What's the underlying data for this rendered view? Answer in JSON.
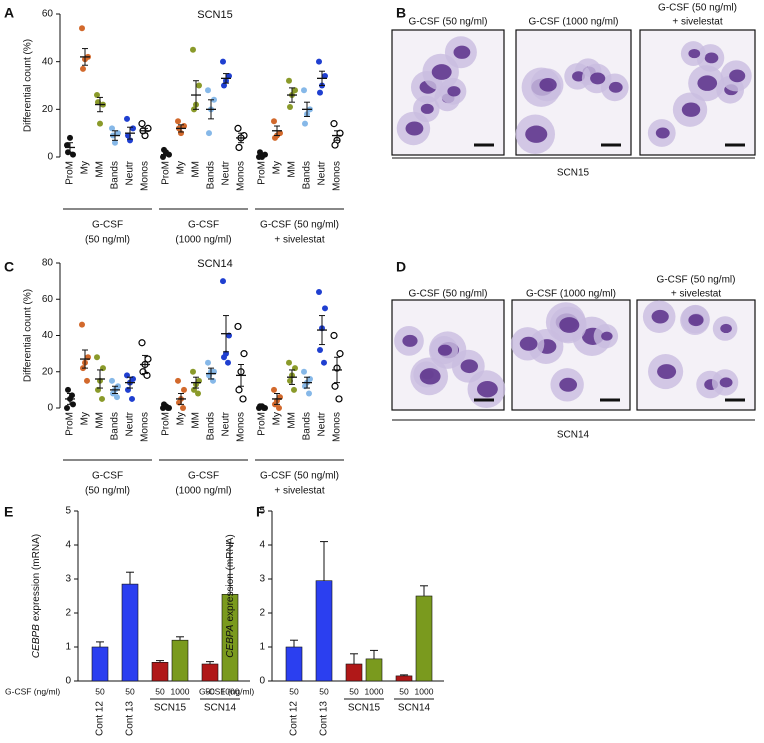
{
  "chart_data": [
    {
      "type": "dot",
      "panel_label": "A",
      "title": "SCN15",
      "y_label": "Differential count (%)",
      "ylim": [
        0,
        60
      ],
      "yticks": [
        0,
        20,
        40,
        60
      ],
      "categories": [
        "ProM",
        "My",
        "MM",
        "Bands",
        "Neutr",
        "Monos"
      ],
      "colors": [
        "#111111",
        "#d2692c",
        "#8a9a2a",
        "#86b8e8",
        "#1f3fd0",
        "#000000"
      ],
      "markers": [
        "filled",
        "filled",
        "filled",
        "filled",
        "filled",
        "open"
      ],
      "groups": [
        {
          "label": [
            "G-CSF",
            "(50 ng/ml)"
          ],
          "points": [
            [
              5,
              1,
              8,
              2
            ],
            [
              54,
              42,
              41,
              37
            ],
            [
              26,
              22,
              14,
              23
            ],
            [
              12,
              10,
              6,
              9
            ],
            [
              16,
              12,
              7,
              9
            ],
            [
              14,
              12,
              9,
              11
            ]
          ],
          "means": [
            4,
            42,
            22,
            9,
            10,
            11
          ],
          "sems": [
            2,
            3.5,
            3,
            2,
            2.5,
            1
          ]
        },
        {
          "label": [
            "G-CSF",
            "(1000 ng/ml)"
          ],
          "points": [
            [
              0,
              1,
              2,
              3
            ],
            [
              15,
              13,
              10,
              12
            ],
            [
              45,
              30,
              22,
              20
            ],
            [
              28,
              24,
              20,
              10
            ],
            [
              40,
              34,
              32,
              30
            ],
            [
              12,
              9,
              8,
              4
            ]
          ],
          "means": [
            1,
            12,
            26,
            20,
            33,
            8
          ],
          "sems": [
            0.5,
            1.5,
            6,
            4,
            2,
            2
          ]
        },
        {
          "label": [
            "G-CSF (50 ng/ml)",
            "+ sivelestat"
          ],
          "points": [
            [
              0,
              1,
              0,
              2
            ],
            [
              15,
              10,
              9,
              8
            ],
            [
              32,
              28,
              26,
              21
            ],
            [
              28,
              20,
              18,
              14
            ],
            [
              40,
              34,
              30,
              27
            ],
            [
              14,
              10,
              7,
              5
            ]
          ],
          "means": [
            0.5,
            11,
            26,
            20,
            33,
            9
          ],
          "sems": [
            0.5,
            2,
            3,
            3,
            3,
            2
          ]
        }
      ]
    },
    {
      "type": "dot",
      "panel_label": "C",
      "title": "SCN14",
      "y_label": "Differential count (%)",
      "ylim": [
        0,
        80
      ],
      "yticks": [
        0,
        20,
        40,
        60,
        80
      ],
      "categories": [
        "ProM",
        "My",
        "MM",
        "Bands",
        "Neutr",
        "Monos"
      ],
      "colors": [
        "#111111",
        "#d2692c",
        "#8a9a2a",
        "#86b8e8",
        "#1f3fd0",
        "#000000"
      ],
      "markers": [
        "filled",
        "filled",
        "filled",
        "filled",
        "filled",
        "open"
      ],
      "groups": [
        {
          "label": [
            "G-CSF",
            "(50 ng/ml)"
          ],
          "points": [
            [
              0,
              2,
              5,
              10,
              7
            ],
            [
              46,
              28,
              25,
              22,
              15
            ],
            [
              28,
              22,
              15,
              10,
              5
            ],
            [
              15,
              12,
              10,
              8,
              6
            ],
            [
              18,
              16,
              14,
              10,
              5
            ],
            [
              36,
              27,
              24,
              20,
              18
            ]
          ],
          "means": [
            5,
            27,
            16,
            10,
            14,
            24
          ],
          "sems": [
            3,
            5,
            5,
            2,
            3,
            5
          ]
        },
        {
          "label": [
            "G-CSF",
            "(1000 ng/ml)"
          ],
          "points": [
            [
              0,
              0,
              1,
              2,
              0
            ],
            [
              15,
              10,
              5,
              3,
              0
            ],
            [
              20,
              15,
              13,
              10,
              8
            ],
            [
              25,
              20,
              20,
              18,
              15
            ],
            [
              70,
              40,
              30,
              28,
              25
            ],
            [
              45,
              30,
              20,
              10,
              5
            ]
          ],
          "means": [
            1,
            5,
            14,
            19,
            41,
            18
          ],
          "sems": [
            0.5,
            3,
            3,
            3,
            10,
            6
          ]
        },
        {
          "label": [
            "G-CSF (50 ng/ml)",
            "+ sivelestat"
          ],
          "points": [
            [
              0,
              0,
              1,
              1,
              0
            ],
            [
              10,
              6,
              4,
              2,
              0
            ],
            [
              25,
              22,
              18,
              15,
              10
            ],
            [
              20,
              16,
              14,
              12,
              8
            ],
            [
              64,
              55,
              44,
              32,
              25
            ],
            [
              40,
              30,
              22,
              12,
              5
            ]
          ],
          "means": [
            0.5,
            5,
            17,
            14,
            43,
            21
          ],
          "sems": [
            0.3,
            3,
            4,
            3,
            8,
            7
          ]
        }
      ]
    },
    {
      "type": "bar",
      "panel_label": "E",
      "y_label_gene": "CEBPB",
      "y_label": "expression (mRNA)",
      "ylim": [
        0,
        5
      ],
      "yticks": [
        0,
        1,
        2,
        3,
        4,
        5
      ],
      "dose_label": "G-CSF (ng/ml)",
      "groups": [
        {
          "label": "Cont 12",
          "doses": [
            "50"
          ],
          "values": [
            1.0
          ],
          "errors": [
            0.15
          ],
          "colors": [
            "#2b3ff0"
          ]
        },
        {
          "label": "Cont 13",
          "doses": [
            "50"
          ],
          "values": [
            2.85
          ],
          "errors": [
            0.35
          ],
          "colors": [
            "#2b3ff0"
          ]
        },
        {
          "label": "SCN15",
          "doses": [
            "50",
            "1000"
          ],
          "values": [
            0.55,
            1.2
          ],
          "errors": [
            0.05,
            0.1
          ],
          "colors": [
            "#b01818",
            "#7a9a1e"
          ]
        },
        {
          "label": "SCN14",
          "doses": [
            "50",
            "1000"
          ],
          "values": [
            0.5,
            2.55
          ],
          "errors": [
            0.07,
            1.5
          ],
          "colors": [
            "#b01818",
            "#7a9a1e"
          ]
        }
      ]
    },
    {
      "type": "bar",
      "panel_label": "F",
      "y_label_gene": "CEBPA",
      "y_label": "expression (mRNA)",
      "ylim": [
        0,
        5
      ],
      "yticks": [
        0,
        1,
        2,
        3,
        4,
        5
      ],
      "dose_label": "G-CSF (ng/ml)",
      "groups": [
        {
          "label": "Cont 12",
          "doses": [
            "50"
          ],
          "values": [
            1.0
          ],
          "errors": [
            0.2
          ],
          "colors": [
            "#2b3ff0"
          ]
        },
        {
          "label": "Cont 13",
          "doses": [
            "50"
          ],
          "values": [
            2.95
          ],
          "errors": [
            1.15
          ],
          "colors": [
            "#2b3ff0"
          ]
        },
        {
          "label": "SCN15",
          "doses": [
            "50",
            "1000"
          ],
          "values": [
            0.5,
            0.65
          ],
          "errors": [
            0.3,
            0.25
          ],
          "colors": [
            "#b01818",
            "#7a9a1e"
          ]
        },
        {
          "label": "SCN14",
          "doses": [
            "50",
            "1000"
          ],
          "values": [
            0.15,
            2.5
          ],
          "errors": [
            0.03,
            0.3
          ],
          "colors": [
            "#b01818",
            "#7a9a1e"
          ]
        }
      ]
    }
  ],
  "micrographs": [
    {
      "panel_label": "B",
      "captions": [
        [
          "G-CSF (50 ng/ml)"
        ],
        [
          "G-CSF (1000 ng/ml)"
        ],
        [
          "G-CSF (50 ng/ml)",
          "+ sivelestat"
        ]
      ],
      "sample": "SCN15"
    },
    {
      "panel_label": "D",
      "captions": [
        [
          "G-CSF (50 ng/ml)"
        ],
        [
          "G-CSF (1000 ng/ml)"
        ],
        [
          "G-CSF (50 ng/ml)",
          "+ sivelestat"
        ]
      ],
      "sample": "SCN14"
    }
  ]
}
